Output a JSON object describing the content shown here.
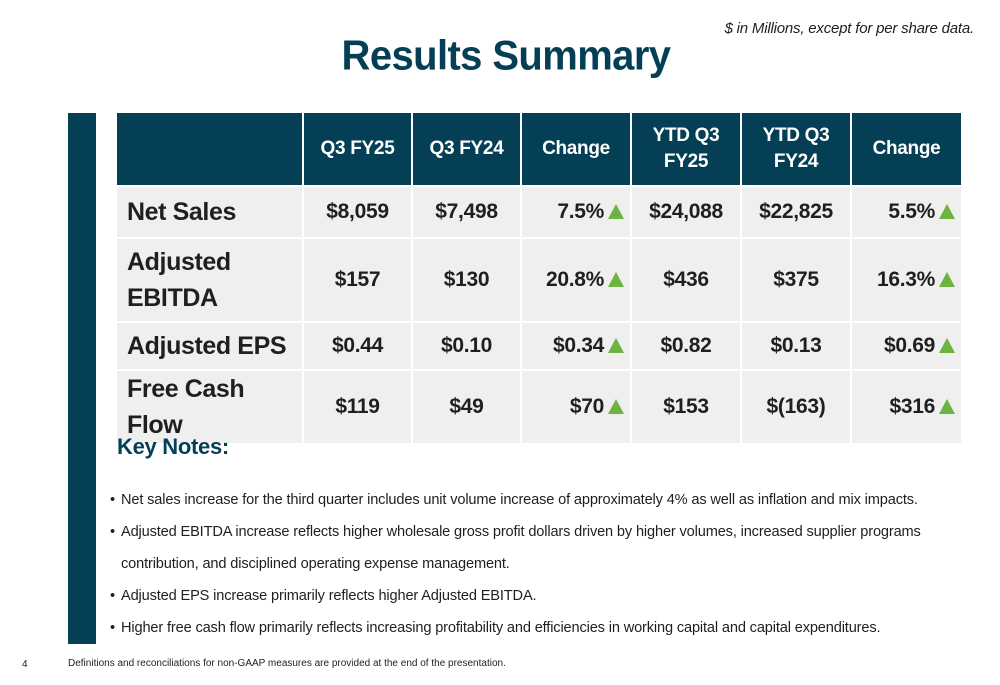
{
  "header": {
    "title": "Results Summary",
    "units_note": "$ in Millions, except for per share data."
  },
  "table": {
    "columns": [
      "",
      "Q3 FY25",
      "Q3 FY24",
      "Change",
      "YTD Q3 FY25",
      "YTD Q3 FY24",
      "Change"
    ],
    "rows": [
      {
        "label": "Net Sales",
        "q3_fy25": "$8,059",
        "q3_fy24": "$7,498",
        "change": "7.5%",
        "ytd_fy25": "$24,088",
        "ytd_fy24": "$22,825",
        "ytd_change": "5.5%"
      },
      {
        "label": "Adjusted EBITDA",
        "q3_fy25": "$157",
        "q3_fy24": "$130",
        "change": "20.8%",
        "ytd_fy25": "$436",
        "ytd_fy24": "$375",
        "ytd_change": "16.3%"
      },
      {
        "label": "Adjusted EPS",
        "q3_fy25": "$0.44",
        "q3_fy24": "$0.10",
        "change": "$0.34",
        "ytd_fy25": "$0.82",
        "ytd_fy24": "$0.13",
        "ytd_change": "$0.69"
      },
      {
        "label": "Free Cash Flow",
        "q3_fy25": "$119",
        "q3_fy24": "$49",
        "change": "$70",
        "ytd_fy25": "$153",
        "ytd_fy24": "$(163)",
        "ytd_change": "$316"
      }
    ],
    "change_icon": "up-arrow-icon"
  },
  "key_notes": {
    "title": "Key Notes:",
    "items": [
      "Net sales increase for the third quarter includes unit volume increase of approximately 4% as well as inflation and mix impacts.",
      "Adjusted EBITDA increase reflects higher wholesale gross profit dollars driven by higher volumes, increased supplier programs contribution, and disciplined operating expense management.",
      "Adjusted EPS increase primarily reflects higher Adjusted EBITDA.",
      "Higher free cash flow primarily reflects increasing profitability and efficiencies in working capital and capital expenditures."
    ]
  },
  "footer": {
    "page_number": "4",
    "footnote": "Definitions and reconciliations for non-GAAP measures are provided at the end of the presentation."
  },
  "colors": {
    "brand_navy": "#053f56",
    "cell_gray": "#efefef",
    "increase_green": "#6db33f"
  }
}
